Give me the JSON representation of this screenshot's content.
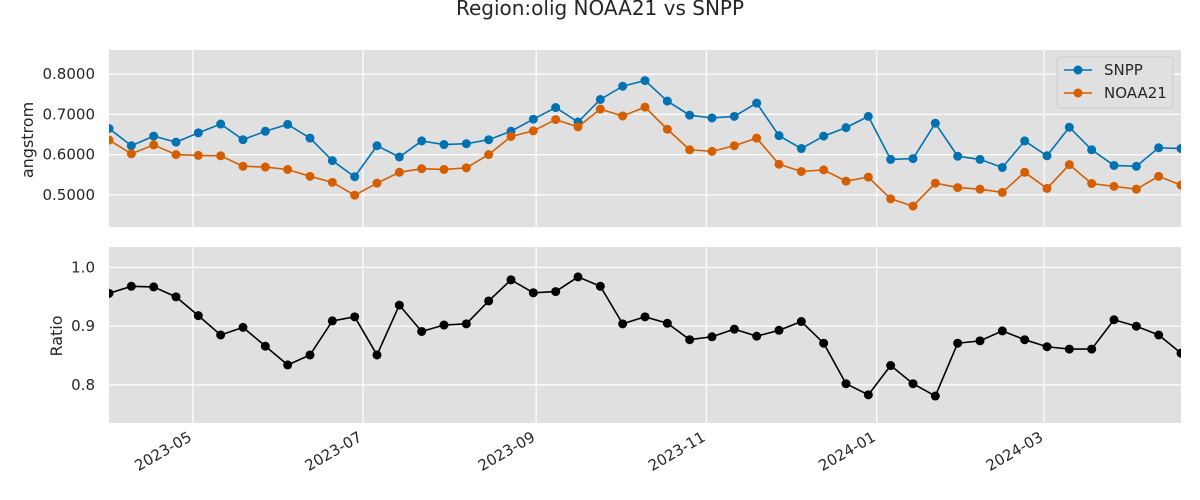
{
  "title": "Region:olig NOAA21 vs SNPP",
  "colors": {
    "snpp": "#0072b2",
    "noaa21": "#d55e00",
    "ratio": "#000000",
    "panel_bg": "#e0e0e0",
    "grid": "#ffffff"
  },
  "chart_data": [
    {
      "type": "line",
      "ylabel": "angstrom",
      "ylim": [
        0.42,
        0.86
      ],
      "yticks": [
        0.5,
        0.6,
        0.7,
        0.8
      ],
      "ytick_labels": [
        "0.5000",
        "0.6000",
        "0.7000",
        "0.8000"
      ],
      "legend": "top-right",
      "grid": true,
      "x": [
        "2023-04-01",
        "2023-04-09",
        "2023-04-17",
        "2023-04-25",
        "2023-05-03",
        "2023-05-11",
        "2023-05-19",
        "2023-05-27",
        "2023-06-04",
        "2023-06-12",
        "2023-06-20",
        "2023-06-28",
        "2023-07-06",
        "2023-07-14",
        "2023-07-22",
        "2023-07-30",
        "2023-08-07",
        "2023-08-15",
        "2023-08-23",
        "2023-08-31",
        "2023-09-08",
        "2023-09-16",
        "2023-09-24",
        "2023-10-02",
        "2023-10-10",
        "2023-10-18",
        "2023-10-26",
        "2023-11-03",
        "2023-11-11",
        "2023-11-19",
        "2023-11-27",
        "2023-12-05",
        "2023-12-13",
        "2023-12-21",
        "2023-12-29",
        "2024-01-06",
        "2024-01-14",
        "2024-01-22",
        "2024-01-30",
        "2024-02-07",
        "2024-02-15",
        "2024-02-23",
        "2024-03-02",
        "2024-03-10",
        "2024-03-18",
        "2024-03-26",
        "2024-04-03",
        "2024-04-11",
        "2024-04-19"
      ],
      "series": [
        {
          "name": "SNPP",
          "values": [
            0.665,
            0.622,
            0.646,
            0.631,
            0.654,
            0.676,
            0.637,
            0.658,
            0.675,
            0.641,
            0.585,
            0.545,
            0.622,
            0.594,
            0.634,
            0.625,
            0.627,
            0.637,
            0.658,
            0.688,
            0.717,
            0.681,
            0.737,
            0.77,
            0.784,
            0.733,
            0.698,
            0.691,
            0.695,
            0.728,
            0.647,
            0.615,
            0.646,
            0.667,
            0.695,
            0.588,
            0.59,
            0.678,
            0.596,
            0.588,
            0.568,
            0.634,
            0.597,
            0.668,
            0.612,
            0.573,
            0.571,
            0.617,
            0.615
          ]
        },
        {
          "name": "NOAA21",
          "values": [
            0.636,
            0.602,
            0.624,
            0.6,
            0.598,
            0.597,
            0.571,
            0.569,
            0.563,
            0.546,
            0.531,
            0.499,
            0.529,
            0.556,
            0.565,
            0.563,
            0.567,
            0.6,
            0.645,
            0.659,
            0.687,
            0.669,
            0.713,
            0.696,
            0.718,
            0.663,
            0.612,
            0.608,
            0.622,
            0.641,
            0.576,
            0.558,
            0.562,
            0.534,
            0.544,
            0.49,
            0.472,
            0.529,
            0.518,
            0.514,
            0.506,
            0.556,
            0.516,
            0.575,
            0.528,
            0.521,
            0.514,
            0.546,
            0.524
          ]
        }
      ]
    },
    {
      "type": "line",
      "ylabel": "Ratio",
      "ylim": [
        0.735,
        1.035
      ],
      "yticks": [
        0.8,
        0.9,
        1.0
      ],
      "ytick_labels": [
        "0.8",
        "0.9",
        "1.0"
      ],
      "xtick_labels": [
        "2023-05",
        "2023-07",
        "2023-09",
        "2023-11",
        "2024-01",
        "2024-03"
      ],
      "xtick_dates": [
        "2023-05-01",
        "2023-07-01",
        "2023-09-01",
        "2023-11-01",
        "2024-01-01",
        "2024-03-01"
      ],
      "xlim": [
        "2023-04-01",
        "2024-04-19"
      ],
      "grid": true,
      "series": [
        {
          "values": [
            0.956,
            0.968,
            0.967,
            0.95,
            0.918,
            0.885,
            0.898,
            0.866,
            0.834,
            0.851,
            0.909,
            0.916,
            0.851,
            0.936,
            0.891,
            0.902,
            0.904,
            0.943,
            0.979,
            0.957,
            0.959,
            0.984,
            0.968,
            0.904,
            0.916,
            0.905,
            0.877,
            0.882,
            0.895,
            0.883,
            0.893,
            0.908,
            0.871,
            0.802,
            0.783,
            0.833,
            0.802,
            0.781,
            0.871,
            0.875,
            0.892,
            0.877,
            0.865,
            0.861,
            0.861,
            0.911,
            0.9,
            0.885,
            0.854
          ]
        }
      ]
    }
  ]
}
